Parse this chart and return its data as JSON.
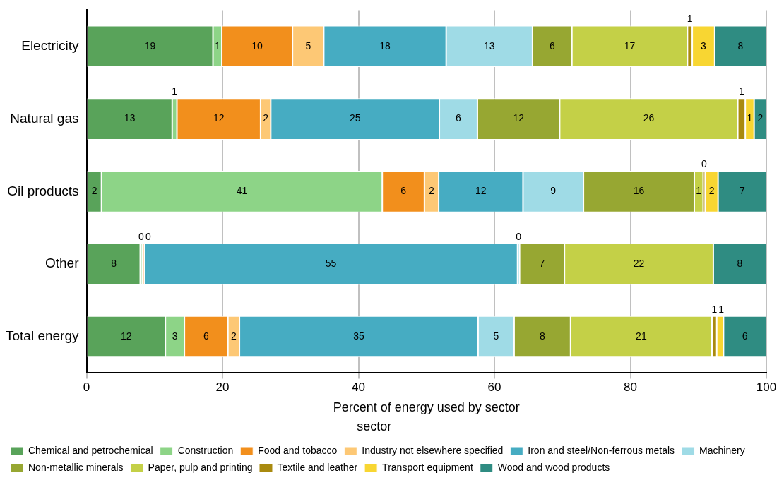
{
  "chart_data": {
    "type": "bar",
    "orientation": "horizontal",
    "stacked": true,
    "xlabel": "Percent of energy used by sector",
    "legend_title": "sector",
    "legend": "bottom",
    "grid": "x",
    "categories": [
      "Electricity",
      "Natural gas",
      "Oil products",
      "Other",
      "Total energy"
    ],
    "xlim": [
      0,
      100
    ],
    "xticks": [
      0,
      20,
      40,
      60,
      80,
      100
    ],
    "series": [
      {
        "name": "Chemical and petrochemical",
        "color": "#59a35a",
        "values": [
          18.6,
          12.6,
          2.2,
          7.9,
          11.6
        ],
        "value_labels": [
          "19",
          "13",
          "2",
          "8",
          "12"
        ]
      },
      {
        "name": "Construction",
        "color": "#8dd487",
        "values": [
          1.3,
          0.7,
          41.3,
          0.3,
          2.8
        ],
        "value_labels": [
          "1",
          "1",
          "41",
          "0",
          "3"
        ]
      },
      {
        "name": "Food and tobacco",
        "color": "#f28f1c",
        "values": [
          10.4,
          12.3,
          6.2,
          0.3,
          6.4
        ],
        "value_labels": [
          "10",
          "12",
          "6",
          "0",
          "6"
        ]
      },
      {
        "name": "Industry not elsewhere specified",
        "color": "#fdc875",
        "values": [
          4.6,
          1.5,
          2.1,
          null,
          1.7
        ],
        "value_labels": [
          "5",
          "2",
          "2",
          null,
          "2"
        ]
      },
      {
        "name": "Iron and steel/Non-ferrous metals",
        "color": "#46acc2",
        "values": [
          18.0,
          24.8,
          12.4,
          54.9,
          35.1
        ],
        "value_labels": [
          "18",
          "25",
          "12",
          "55",
          "35"
        ]
      },
      {
        "name": "Machinery",
        "color": "#9fdbe6",
        "values": [
          12.7,
          5.6,
          8.9,
          0.3,
          5.3
        ],
        "value_labels": [
          "13",
          "6",
          "9",
          "0",
          "5"
        ]
      },
      {
        "name": "Non-metallic minerals",
        "color": "#97a732",
        "values": [
          5.8,
          12.1,
          16.3,
          6.6,
          8.3
        ],
        "value_labels": [
          "6",
          "12",
          "16",
          "7",
          "8"
        ]
      },
      {
        "name": "Paper, pulp and printing",
        "color": "#c4d047",
        "values": [
          17.0,
          26.2,
          1.3,
          21.9,
          20.8
        ],
        "value_labels": [
          "17",
          "26",
          "1",
          "22",
          "21"
        ]
      },
      {
        "name": "Textile and leather",
        "color": "#a98a0f",
        "values": [
          0.7,
          1.1,
          0.3,
          null,
          0.7
        ],
        "value_labels": [
          "1",
          "1",
          "0",
          null,
          "1"
        ]
      },
      {
        "name": "Transport equipment",
        "color": "#f8d632",
        "values": [
          3.3,
          1.3,
          1.9,
          null,
          1.0
        ],
        "value_labels": [
          "3",
          "1",
          "2",
          null,
          "1"
        ]
      },
      {
        "name": "Wood and wood products",
        "color": "#2f8c82",
        "values": [
          7.6,
          1.8,
          7.1,
          7.8,
          6.3
        ],
        "value_labels": [
          "8",
          "2",
          "7",
          "8",
          "6"
        ]
      }
    ]
  }
}
